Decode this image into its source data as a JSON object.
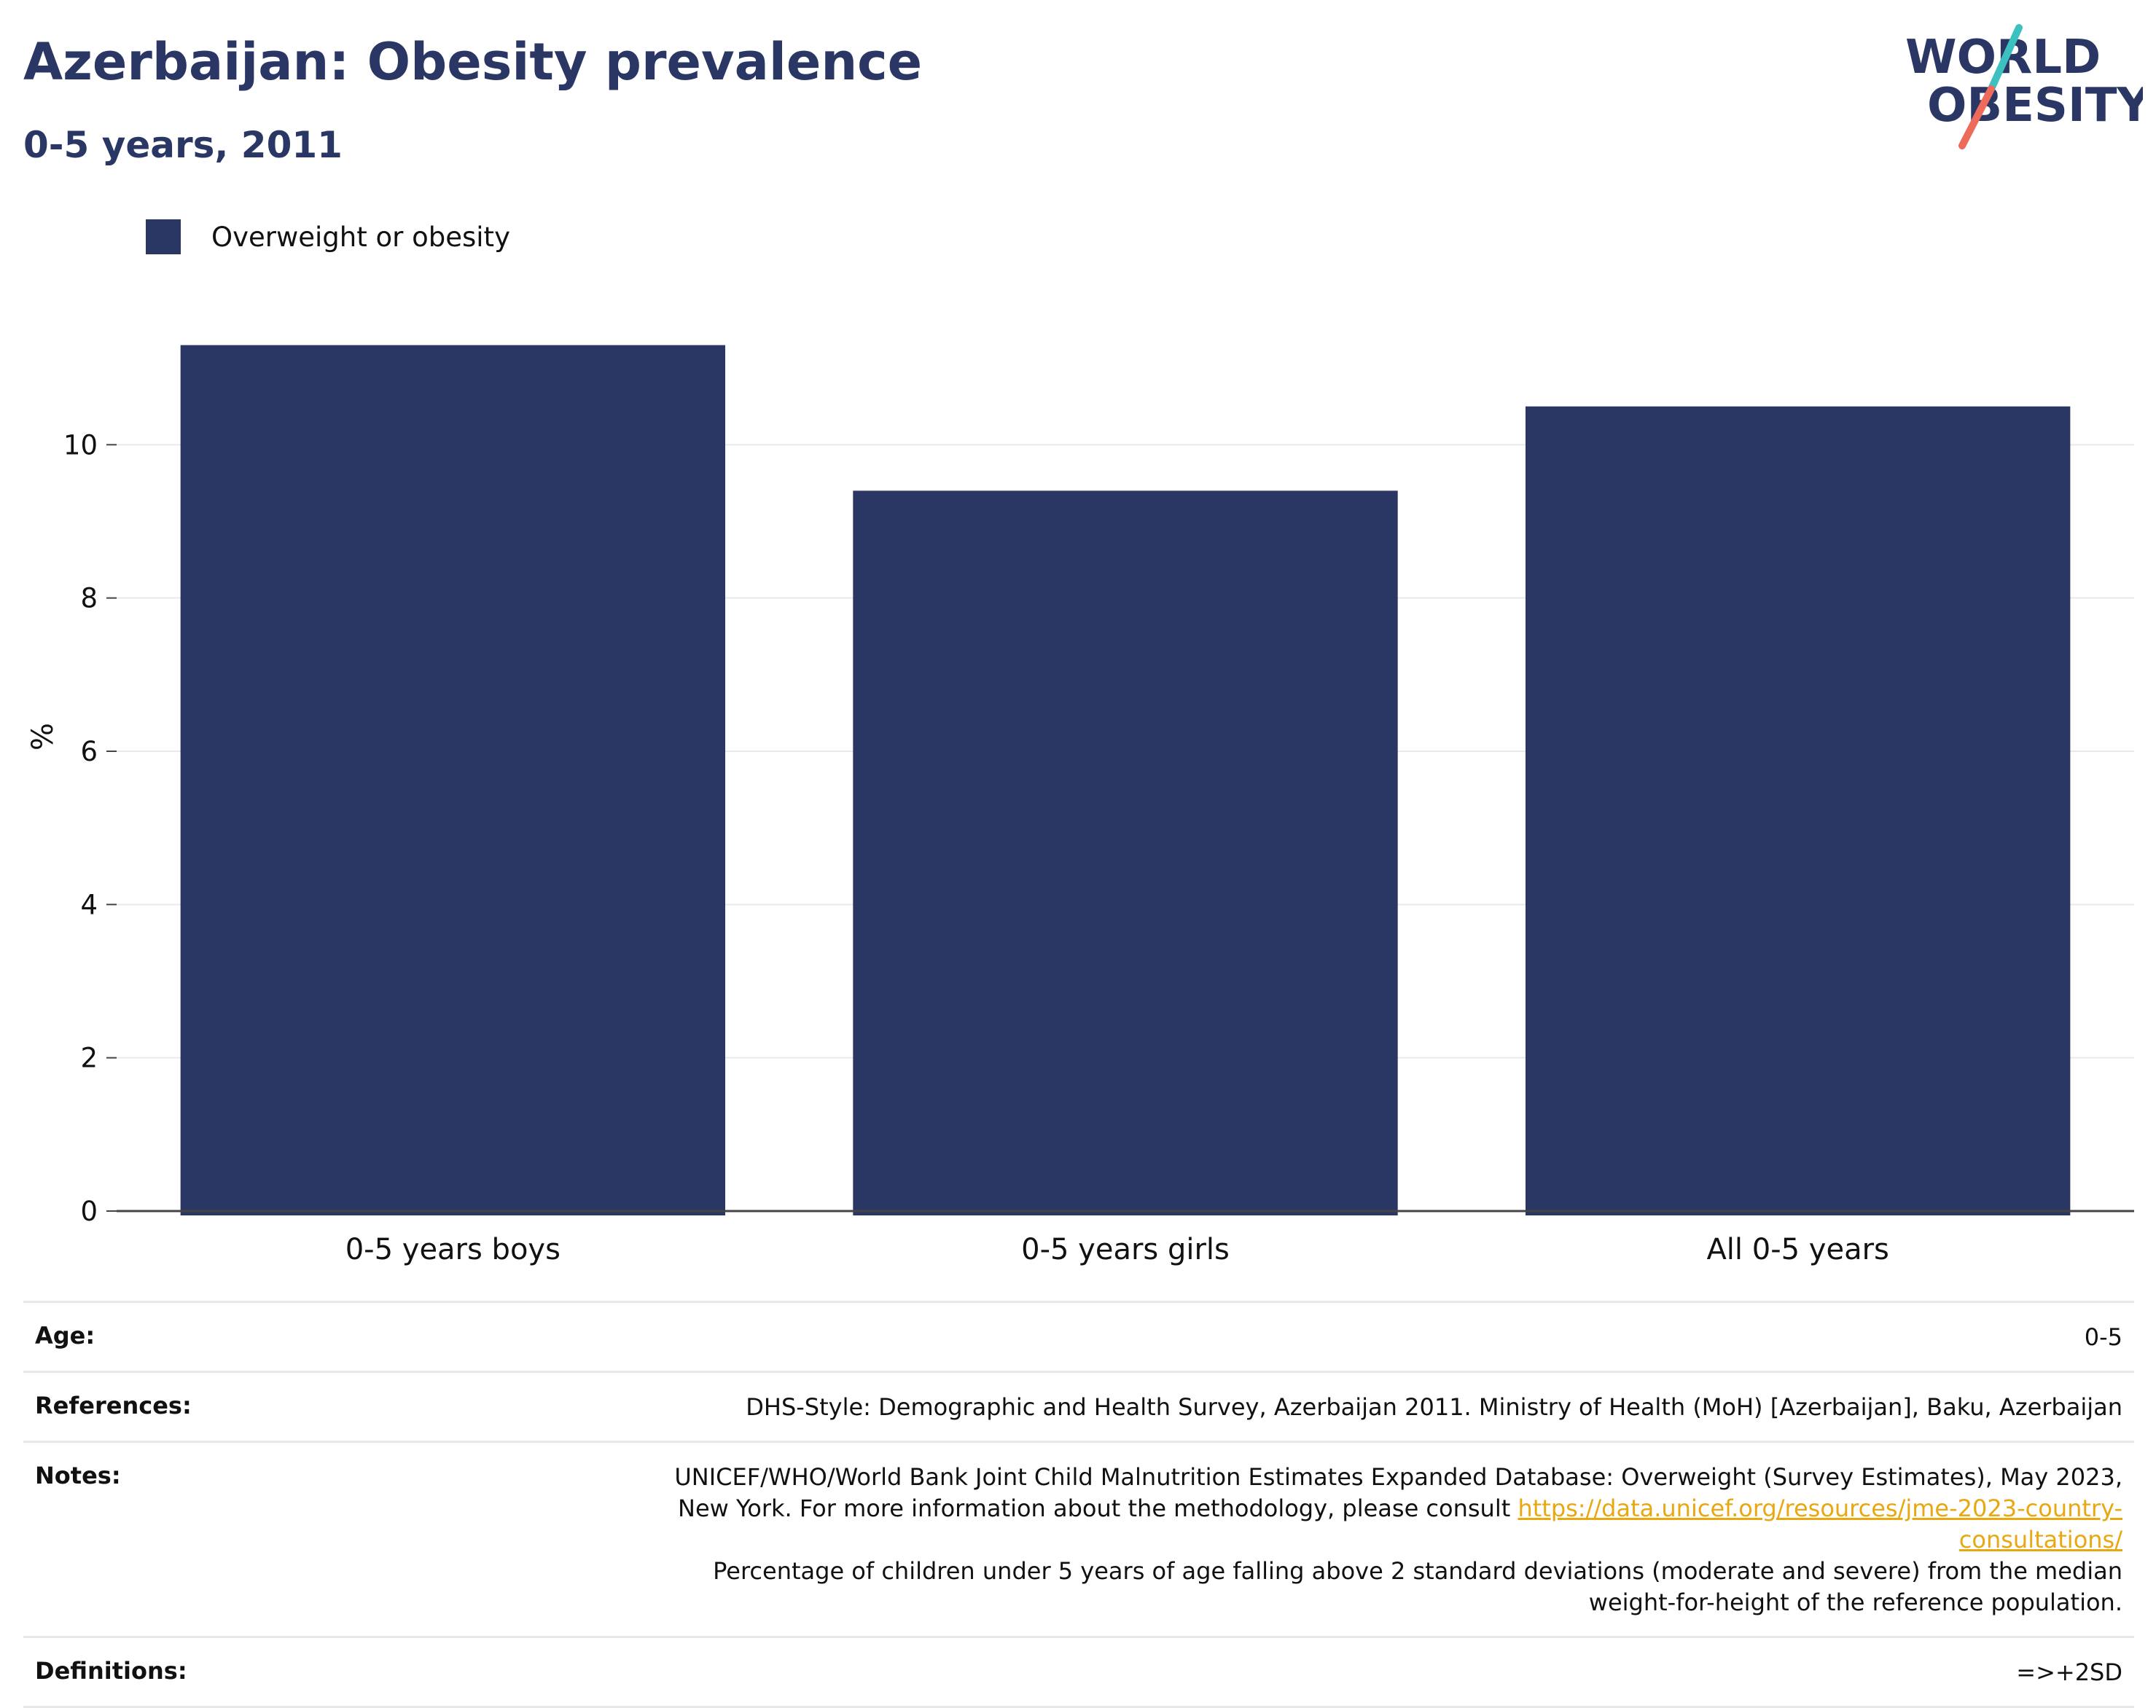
{
  "header": {
    "title": "Azerbaijan: Obesity prevalence",
    "subtitle": "0-5 years, 2011"
  },
  "logo": {
    "line1": "WORLD",
    "line2": "OBESITY"
  },
  "colors": {
    "bar": "#2a3664",
    "title": "#2a3664",
    "link": "#e8a812",
    "logo_teal": "#3cc1c0",
    "logo_coral": "#ee6b5b"
  },
  "legend": {
    "label": "Overweight or obesity"
  },
  "chart_data": {
    "type": "bar",
    "categories": [
      "0-5 years boys",
      "0-5 years girls",
      "All 0-5 years"
    ],
    "series": [
      {
        "name": "Overweight or obesity",
        "values": [
          11.3,
          9.4,
          10.5
        ]
      }
    ],
    "ylabel": "%",
    "xlabel": "",
    "ylim": [
      0,
      12
    ],
    "yticks": [
      0,
      2,
      4,
      6,
      8,
      10
    ],
    "grid": true,
    "legend_position": "top-left"
  },
  "meta": {
    "age_label": "Age:",
    "age_value": "0-5",
    "references_label": "References:",
    "references_value": "DHS-Style: Demographic and Health Survey, Azerbaijan 2011. Ministry of Health (MoH) [Azerbaijan], Baku, Azerbaijan",
    "notes_label": "Notes:",
    "notes_text_1": "UNICEF/WHO/World Bank Joint Child Malnutrition Estimates Expanded Database: Overweight (Survey Estimates), May 2023, New York. For more information about the methodology, please consult ",
    "notes_link": "https://data.unicef.org/resources/jme-2023-country-consultations/",
    "notes_text_2": "Percentage of children under 5 years of age falling above 2 standard deviations (moderate and severe) from the median weight-for-height of the reference population.",
    "definitions_label": "Definitions:",
    "definitions_value": "=>+2SD"
  }
}
